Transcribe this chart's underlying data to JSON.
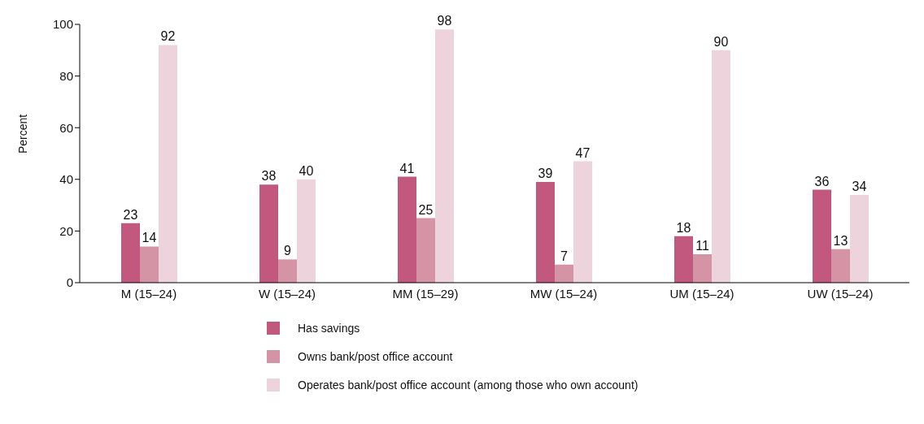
{
  "chart_data": {
    "type": "bar",
    "ylabel": "Percent",
    "categories": [
      "M (15–24)",
      "W (15–24)",
      "MM (15–29)",
      "MW (15–24)",
      "UM (15–24)",
      "UW (15–24)"
    ],
    "series": [
      {
        "name": "Has savings",
        "color": "#c2587e",
        "values": [
          23,
          38,
          41,
          39,
          18,
          36
        ]
      },
      {
        "name": "Owns bank/post office account",
        "color": "#d494a6",
        "values": [
          14,
          9,
          25,
          7,
          11,
          13
        ]
      },
      {
        "name": "Operates bank/post office account (among those who own account)",
        "color": "#edd4dc",
        "values": [
          92,
          40,
          98,
          47,
          90,
          34
        ]
      }
    ],
    "ylim": [
      0,
      100
    ],
    "yticks": [
      0,
      20,
      40,
      60,
      80,
      100
    ],
    "grid": false,
    "legend": "bottom",
    "data_labels": true
  }
}
